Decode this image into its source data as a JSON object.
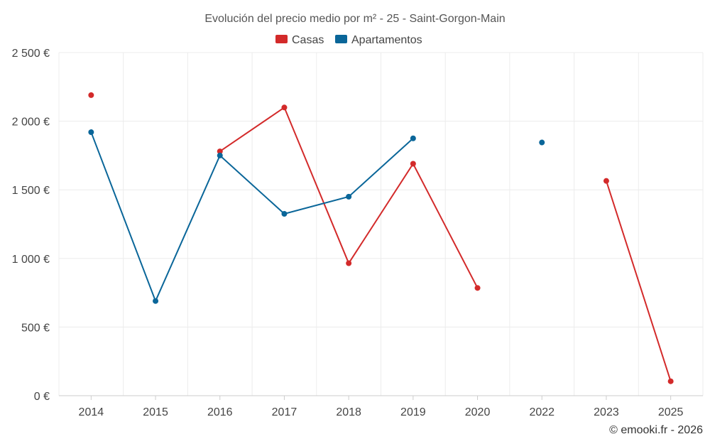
{
  "chart_data": {
    "type": "line",
    "title": "Evolución del precio medio por m² - 25 - Saint-Gorgon-Main",
    "categories": [
      "2014",
      "2015",
      "2016",
      "2017",
      "2018",
      "2019",
      "2020",
      "2022",
      "2023",
      "2025"
    ],
    "yticks": [
      {
        "value": 0,
        "label": "0 €"
      },
      {
        "value": 500,
        "label": "500 €"
      },
      {
        "value": 1000,
        "label": "1 000 €"
      },
      {
        "value": 1500,
        "label": "1 500 €"
      },
      {
        "value": 2000,
        "label": "2 000 €"
      },
      {
        "value": 2500,
        "label": "2 500 €"
      }
    ],
    "ylim": [
      0,
      2500
    ],
    "grid": true,
    "legend_position": "top-center",
    "series": [
      {
        "name": "Casas",
        "color": "#d32a2a",
        "values": [
          2190,
          null,
          1780,
          2100,
          965,
          1690,
          785,
          null,
          1565,
          105
        ]
      },
      {
        "name": "Apartamentos",
        "color": "#0a6699",
        "values": [
          1920,
          690,
          1750,
          1325,
          1450,
          1875,
          null,
          1845,
          null,
          null
        ]
      }
    ],
    "credit": "© emooki.fr - 2026"
  }
}
